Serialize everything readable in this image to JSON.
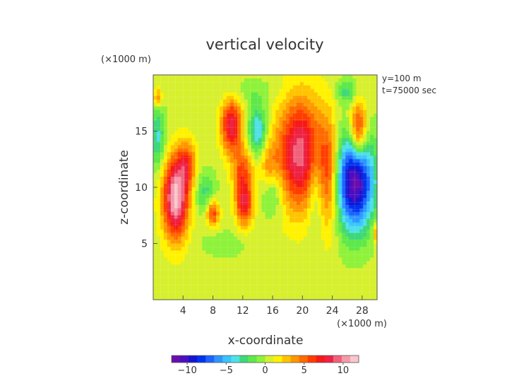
{
  "chart_data": {
    "type": "heatmap",
    "title": "vertical velocity",
    "xlabel": "x-coordinate",
    "ylabel": "z-coordinate",
    "x_unit": "(×1000 m)",
    "y_unit": "(×1000 m)",
    "annotations": [
      "y=100 m",
      "t=75000 sec"
    ],
    "xlim": [
      0,
      30
    ],
    "ylim": [
      0,
      20
    ],
    "x_ticks": [
      4,
      8,
      12,
      16,
      20,
      24,
      28
    ],
    "y_ticks": [
      5,
      10,
      15
    ],
    "colorbar": {
      "range": [
        -12,
        12
      ],
      "ticks": [
        -10,
        -5,
        0,
        5,
        10
      ],
      "tick_labels": [
        "−10",
        "−5",
        "0",
        "5",
        "10"
      ],
      "colors": [
        "#6a0dad",
        "#4b0fbf",
        "#1414d2",
        "#0033ee",
        "#1e63ff",
        "#2e95ff",
        "#39c3ff",
        "#4fe0e8",
        "#3dd87a",
        "#5ee84a",
        "#8ef23a",
        "#d7f02e",
        "#fff200",
        "#ffc400",
        "#ff9600",
        "#ff6a00",
        "#ff3d00",
        "#f51a1a",
        "#ee2244",
        "#f0627a",
        "#f59aaa",
        "#f8c6cc"
      ]
    },
    "background_value": 0.4,
    "features": [
      {
        "x": 3.0,
        "z": 9.0,
        "sx": 1.2,
        "sz": 2.5,
        "value": 11
      },
      {
        "x": 4.5,
        "z": 12.0,
        "sx": 0.9,
        "sz": 1.5,
        "value": 5
      },
      {
        "x": 0.6,
        "z": 18.0,
        "sx": 0.4,
        "sz": 0.6,
        "value": 4
      },
      {
        "x": 0.6,
        "z": 14.5,
        "sx": 0.7,
        "sz": 2.0,
        "value": -4
      },
      {
        "x": 7.0,
        "z": 9.5,
        "sx": 1.0,
        "sz": 1.3,
        "value": -3
      },
      {
        "x": 8.0,
        "z": 7.7,
        "sx": 0.6,
        "sz": 0.9,
        "value": 6
      },
      {
        "x": 9.5,
        "z": 5.0,
        "sx": 2.0,
        "sz": 0.8,
        "value": -1.5
      },
      {
        "x": 10.5,
        "z": 15.5,
        "sx": 1.0,
        "sz": 1.7,
        "value": 8
      },
      {
        "x": 12.0,
        "z": 11.5,
        "sx": 1.0,
        "sz": 1.5,
        "value": 5
      },
      {
        "x": 12.2,
        "z": 8.5,
        "sx": 0.8,
        "sz": 1.4,
        "value": 7
      },
      {
        "x": 14.0,
        "z": 15.0,
        "sx": 0.9,
        "sz": 1.6,
        "value": -5
      },
      {
        "x": 16.0,
        "z": 9.5,
        "sx": 1.0,
        "sz": 1.5,
        "value": -3
      },
      {
        "x": 15.5,
        "z": 12.0,
        "sx": 0.8,
        "sz": 1.5,
        "value": 3
      },
      {
        "x": 19.7,
        "z": 13.0,
        "sx": 2.2,
        "sz": 3.5,
        "value": 9
      },
      {
        "x": 21.8,
        "z": 10.0,
        "sx": 0.8,
        "sz": 3.0,
        "value": -3
      },
      {
        "x": 23.5,
        "z": 11.0,
        "sx": 1.0,
        "sz": 3.5,
        "value": 5
      },
      {
        "x": 27.0,
        "z": 10.5,
        "sx": 1.8,
        "sz": 3.0,
        "value": -12
      },
      {
        "x": 27.5,
        "z": 15.0,
        "sx": 0.8,
        "sz": 1.8,
        "value": 8
      },
      {
        "x": 26.0,
        "z": 18.5,
        "sx": 1.0,
        "sz": 0.7,
        "value": -3
      },
      {
        "x": 29.8,
        "z": 6.0,
        "sx": 0.3,
        "sz": 0.6,
        "value": 4
      },
      {
        "x": 13.0,
        "z": 18.5,
        "sx": 3.0,
        "sz": 0.8,
        "value": -1.2
      }
    ]
  }
}
